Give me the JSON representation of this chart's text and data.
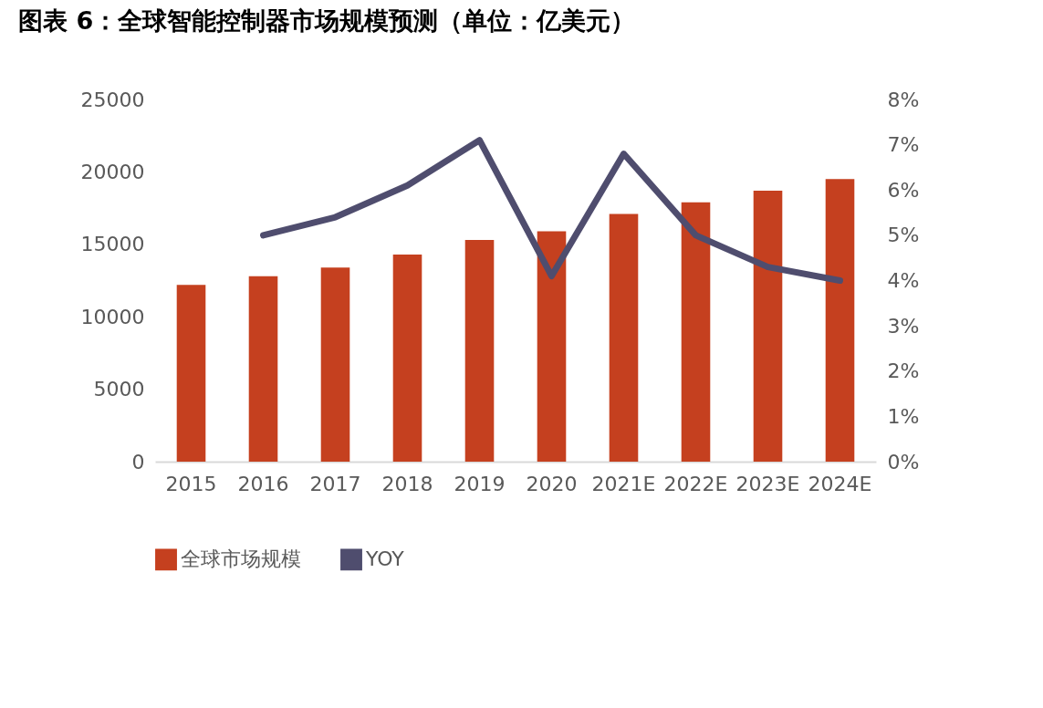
{
  "chart_data": {
    "type": "bar",
    "title": "图表 6：全球智能控制器市场规模预测（单位：亿美元）",
    "categories": [
      "2015",
      "2016",
      "2017",
      "2018",
      "2019",
      "2020",
      "2021E",
      "2022E",
      "2023E",
      "2024E"
    ],
    "series": [
      {
        "name": "全球市场规模",
        "color": "#c5401f",
        "values": [
          12200,
          12800,
          13400,
          14300,
          15300,
          15900,
          17100,
          17900,
          18700,
          19500
        ]
      },
      {
        "name": "YOY",
        "type": "line",
        "axis": "y2",
        "color": "#4f4d6e",
        "values": [
          null,
          5.0,
          5.4,
          6.1,
          7.1,
          4.1,
          6.8,
          5.0,
          4.3,
          4.0
        ]
      }
    ],
    "ylim": [
      0,
      25000
    ],
    "yticks": [
      0,
      5000,
      10000,
      15000,
      20000,
      25000
    ],
    "y2lim": [
      0,
      8
    ],
    "y2ticks": [
      {
        "value": 0,
        "label": "0%"
      },
      {
        "value": 1,
        "label": "1%"
      },
      {
        "value": 2,
        "label": "2%"
      },
      {
        "value": 3,
        "label": "3%"
      },
      {
        "value": 4,
        "label": "4%"
      },
      {
        "value": 5,
        "label": "5%"
      },
      {
        "value": 6,
        "label": "6%"
      },
      {
        "value": 7,
        "label": "7%"
      },
      {
        "value": 8,
        "label": "8%"
      }
    ],
    "grid": false,
    "legend": "bottom"
  }
}
